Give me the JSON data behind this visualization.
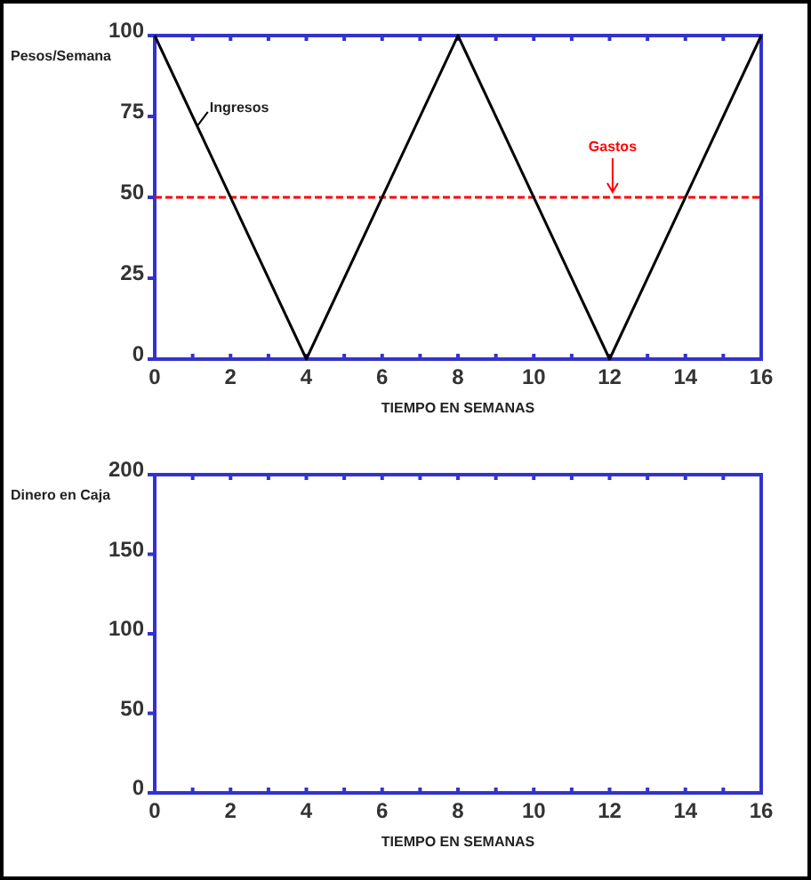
{
  "chart_data": [
    {
      "type": "line",
      "xlabel": "TIEMPO EN SEMANAS",
      "ylabel": "Pesos/Semana",
      "xlim": [
        0,
        16
      ],
      "ylim": [
        0,
        100
      ],
      "xticks": [
        0,
        {
          "value": 1,
          "label": null
        },
        2,
        {
          "value": 3,
          "label": null
        },
        4,
        {
          "value": 5,
          "label": null
        },
        6,
        {
          "value": 7,
          "label": null
        },
        8,
        {
          "value": 9,
          "label": null
        },
        10,
        {
          "value": 11,
          "label": null
        },
        12,
        {
          "value": 13,
          "label": null
        },
        14,
        {
          "value": 15,
          "label": null
        },
        16
      ],
      "yticks": [
        0,
        25,
        50,
        75,
        100
      ],
      "grid": false,
      "series": [
        {
          "name": "Ingresos",
          "color": "#000000",
          "x": [
            0,
            4,
            8,
            12,
            16
          ],
          "values": [
            100,
            0,
            100,
            0,
            100
          ]
        }
      ],
      "ref_lines": [
        {
          "axis": "y",
          "value": 50,
          "label": "Gastos",
          "color": "#ff0000",
          "line_style": "dashed"
        }
      ]
    },
    {
      "type": "line",
      "xlabel": "TIEMPO EN SEMANAS",
      "ylabel": "Dinero en Caja",
      "xlim": [
        0,
        16
      ],
      "ylim": [
        0,
        200
      ],
      "xticks": [
        0,
        {
          "value": 1,
          "label": null
        },
        2,
        {
          "value": 3,
          "label": null
        },
        4,
        {
          "value": 5,
          "label": null
        },
        6,
        {
          "value": 7,
          "label": null
        },
        8,
        {
          "value": 9,
          "label": null
        },
        10,
        {
          "value": 11,
          "label": null
        },
        12,
        {
          "value": 13,
          "label": null
        },
        14,
        {
          "value": 15,
          "label": null
        },
        16
      ],
      "yticks": [
        0,
        50,
        100,
        150,
        200
      ],
      "grid": false
    }
  ]
}
